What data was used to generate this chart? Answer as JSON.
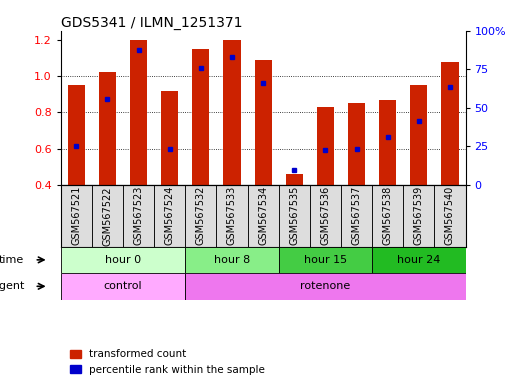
{
  "title": "GDS5341 / ILMN_1251371",
  "samples": [
    "GSM567521",
    "GSM567522",
    "GSM567523",
    "GSM567524",
    "GSM567532",
    "GSM567533",
    "GSM567534",
    "GSM567535",
    "GSM567536",
    "GSM567537",
    "GSM567538",
    "GSM567539",
    "GSM567540"
  ],
  "transformed_count": [
    0.95,
    1.02,
    1.2,
    0.92,
    1.15,
    1.2,
    1.09,
    0.46,
    0.83,
    0.85,
    0.87,
    0.95,
    1.08
  ],
  "percentile_rank_left": [
    0.615,
    0.875,
    1.145,
    0.6,
    1.045,
    1.105,
    0.96,
    0.485,
    0.595,
    0.6,
    0.665,
    0.755,
    0.94
  ],
  "ylim_left": [
    0.4,
    1.25
  ],
  "ylim_right": [
    0,
    100
  ],
  "yticks_left": [
    0.4,
    0.6,
    0.8,
    1.0,
    1.2
  ],
  "yticks_right": [
    0,
    25,
    50,
    75,
    100
  ],
  "time_groups": [
    {
      "label": "hour 0",
      "start": 0,
      "end": 4,
      "color": "#ccffcc"
    },
    {
      "label": "hour 8",
      "start": 4,
      "end": 7,
      "color": "#88ee88"
    },
    {
      "label": "hour 15",
      "start": 7,
      "end": 10,
      "color": "#44cc44"
    },
    {
      "label": "hour 24",
      "start": 10,
      "end": 13,
      "color": "#22bb22"
    }
  ],
  "agent_groups": [
    {
      "label": "control",
      "start": 0,
      "end": 4,
      "color": "#ffaaff"
    },
    {
      "label": "rotenone",
      "start": 4,
      "end": 13,
      "color": "#ee77ee"
    }
  ],
  "bar_color": "#cc2200",
  "dot_color": "#0000cc",
  "bar_width": 0.55,
  "background_color": "#ffffff",
  "plot_bg_color": "#ffffff",
  "tick_label_fontsize": 7,
  "title_fontsize": 10,
  "label_area_color": "#dddddd"
}
